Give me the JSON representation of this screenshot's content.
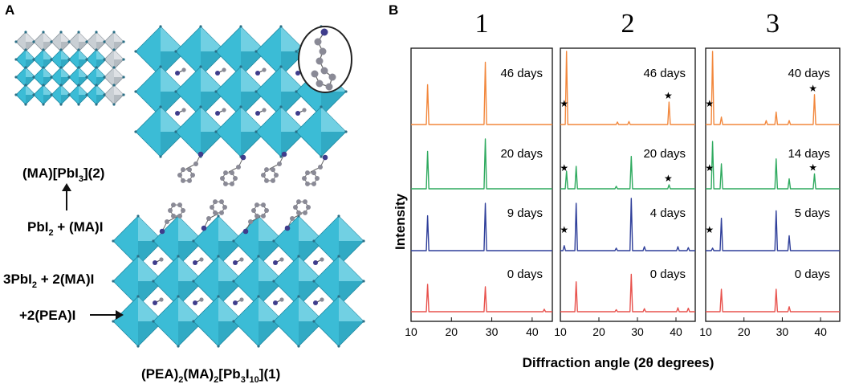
{
  "panel_a": {
    "letter": "A",
    "eq_ma_main": "(MA)[PbI",
    "eq_ma_sub": "3",
    "eq_ma_tail": "](2)",
    "eq_react1_a": "PbI",
    "eq_react1_sub": "2",
    "eq_react1_b": " + (MA)I",
    "eq_react2_a": "3PbI",
    "eq_react2_sub": "2",
    "eq_react2_b": " + 2(MA)I",
    "eq_react3": "+2(PEA)I",
    "eq_product_1": "(PEA)",
    "eq_product_s1": "2",
    "eq_product_2": "(MA)",
    "eq_product_s2": "2",
    "eq_product_3": "[Pb",
    "eq_product_s3": "3",
    "eq_product_4": "I",
    "eq_product_s4": "10",
    "eq_product_5": "](1)"
  },
  "colors": {
    "octahedron": "#3bbcd6",
    "octahedron_dark": "#1f8aa3",
    "octahedron_light": "#9fe0ee",
    "grey_block": "#c9cfd4",
    "molecule": "#8a8a96",
    "molecule_n": "#3f3d8c"
  },
  "chart_data": {
    "type": "line",
    "letter": "B",
    "xlabel": "Diffraction angle (2θ degrees)",
    "ylabel": "Intensity",
    "xlim": [
      10,
      45
    ],
    "xticks": [
      10,
      20,
      30,
      40
    ],
    "stack_colors": [
      "#e8524d",
      "#2f3f9a",
      "#2faa5f",
      "#f2873c"
    ],
    "panels": [
      {
        "title": "1",
        "traces": [
          {
            "label": "0 days",
            "color": "#e8524d",
            "peaks": [
              {
                "x": 14.1,
                "h": 0.55
              },
              {
                "x": 28.4,
                "h": 0.5
              },
              {
                "x": 43.0,
                "h": 0.05
              }
            ]
          },
          {
            "label": "9 days",
            "color": "#2f3f9a",
            "peaks": [
              {
                "x": 14.1,
                "h": 0.7
              },
              {
                "x": 28.4,
                "h": 0.95
              }
            ]
          },
          {
            "label": "20 days",
            "color": "#2faa5f",
            "peaks": [
              {
                "x": 14.1,
                "h": 0.75
              },
              {
                "x": 28.4,
                "h": 1.0
              }
            ]
          },
          {
            "label": "46 days",
            "color": "#f2873c",
            "peaks": [
              {
                "x": 14.1,
                "h": 0.8
              },
              {
                "x": 28.4,
                "h": 1.25
              }
            ]
          }
        ],
        "stars": []
      },
      {
        "title": "2",
        "traces": [
          {
            "label": "0 days",
            "color": "#e8524d",
            "peaks": [
              {
                "x": 14.1,
                "h": 0.6
              },
              {
                "x": 24.5,
                "h": 0.04
              },
              {
                "x": 28.4,
                "h": 0.75
              },
              {
                "x": 31.8,
                "h": 0.06
              },
              {
                "x": 40.5,
                "h": 0.08
              },
              {
                "x": 43.2,
                "h": 0.07
              }
            ]
          },
          {
            "label": "4 days",
            "color": "#2f3f9a",
            "peaks": [
              {
                "x": 11.0,
                "h": 0.1
              },
              {
                "x": 14.1,
                "h": 0.95
              },
              {
                "x": 24.5,
                "h": 0.05
              },
              {
                "x": 28.4,
                "h": 1.05
              },
              {
                "x": 31.8,
                "h": 0.08
              },
              {
                "x": 40.5,
                "h": 0.08
              },
              {
                "x": 43.2,
                "h": 0.06
              }
            ]
          },
          {
            "label": "20 days",
            "color": "#2faa5f",
            "peaks": [
              {
                "x": 11.6,
                "h": 0.35
              },
              {
                "x": 14.1,
                "h": 0.45
              },
              {
                "x": 24.5,
                "h": 0.05
              },
              {
                "x": 28.4,
                "h": 0.65
              },
              {
                "x": 38.2,
                "h": 0.08
              }
            ]
          },
          {
            "label": "46 days",
            "color": "#f2873c",
            "peaks": [
              {
                "x": 11.6,
                "h": 2.0
              },
              {
                "x": 24.8,
                "h": 0.05
              },
              {
                "x": 27.8,
                "h": 0.06
              },
              {
                "x": 38.2,
                "h": 0.45
              }
            ]
          }
        ],
        "stars": [
          {
            "x": 11.0,
            "trace": 3,
            "label": "★"
          },
          {
            "x": 38.0,
            "trace": 3,
            "label": "★"
          },
          {
            "x": 11.0,
            "trace": 2,
            "label": "★"
          },
          {
            "x": 38.0,
            "trace": 2,
            "label": "★"
          },
          {
            "x": 11.0,
            "trace": 1,
            "label": "★"
          }
        ]
      },
      {
        "title": "3",
        "traces": [
          {
            "label": "0 days",
            "color": "#e8524d",
            "peaks": [
              {
                "x": 14.1,
                "h": 0.45
              },
              {
                "x": 28.4,
                "h": 0.45
              },
              {
                "x": 31.8,
                "h": 0.1
              }
            ]
          },
          {
            "label": "5 days",
            "color": "#2f3f9a",
            "peaks": [
              {
                "x": 11.8,
                "h": 0.05
              },
              {
                "x": 14.1,
                "h": 0.65
              },
              {
                "x": 28.4,
                "h": 0.8
              },
              {
                "x": 31.8,
                "h": 0.3
              }
            ]
          },
          {
            "label": "14 days",
            "color": "#2faa5f",
            "peaks": [
              {
                "x": 11.8,
                "h": 0.95
              },
              {
                "x": 14.1,
                "h": 0.5
              },
              {
                "x": 28.4,
                "h": 0.6
              },
              {
                "x": 31.8,
                "h": 0.2
              },
              {
                "x": 38.4,
                "h": 0.3
              }
            ]
          },
          {
            "label": "40 days",
            "color": "#f2873c",
            "peaks": [
              {
                "x": 11.8,
                "h": 2.3
              },
              {
                "x": 14.1,
                "h": 0.15
              },
              {
                "x": 25.8,
                "h": 0.08
              },
              {
                "x": 28.4,
                "h": 0.25
              },
              {
                "x": 31.8,
                "h": 0.08
              },
              {
                "x": 38.4,
                "h": 0.6
              }
            ]
          }
        ],
        "stars": [
          {
            "x": 11.0,
            "trace": 3,
            "label": "★"
          },
          {
            "x": 38.0,
            "trace": 3,
            "label": "★"
          },
          {
            "x": 11.0,
            "trace": 2,
            "label": "★"
          },
          {
            "x": 38.0,
            "trace": 2,
            "label": "★"
          },
          {
            "x": 11.0,
            "trace": 1,
            "label": "★"
          }
        ]
      }
    ]
  }
}
